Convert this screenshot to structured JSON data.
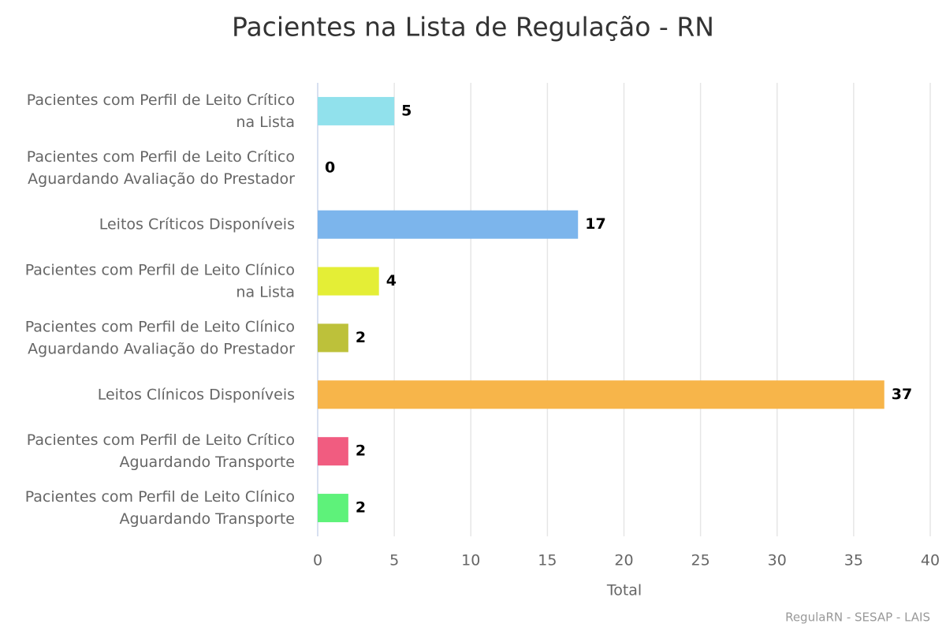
{
  "chart_data": {
    "type": "bar",
    "orientation": "horizontal",
    "title": "Pacientes na Lista de Regulação - RN",
    "categories": [
      "Pacientes com Perfil de Leito Crítico na Lista",
      "Pacientes com Perfil de Leito Crítico Aguardando Avaliação do Prestador",
      "Leitos Críticos Disponíveis",
      "Pacientes com Perfil de Leito Clínico na Lista",
      "Pacientes com Perfil de Leito Clínico Aguardando Avaliação do Prestador",
      "Leitos Clínicos Disponíveis",
      "Pacientes com Perfil de Leito Crítico Aguardando Transporte",
      "Pacientes com Perfil de Leito Clínico Aguardando Transporte"
    ],
    "values": [
      5,
      0,
      17,
      4,
      2,
      37,
      2,
      2
    ],
    "colors": [
      "#91e1ec",
      "#434348",
      "#7cb5ec",
      "#e4ee36",
      "#bdc13a",
      "#f7b54a",
      "#f15c80",
      "#5ef27a"
    ],
    "x_axis_label": "Total",
    "xlim": [
      0,
      40
    ],
    "xticks": [
      0,
      5,
      10,
      15,
      20,
      25,
      30,
      35,
      40
    ],
    "grid": true,
    "credits": "RegulaRN - SESAP - LAIS"
  }
}
